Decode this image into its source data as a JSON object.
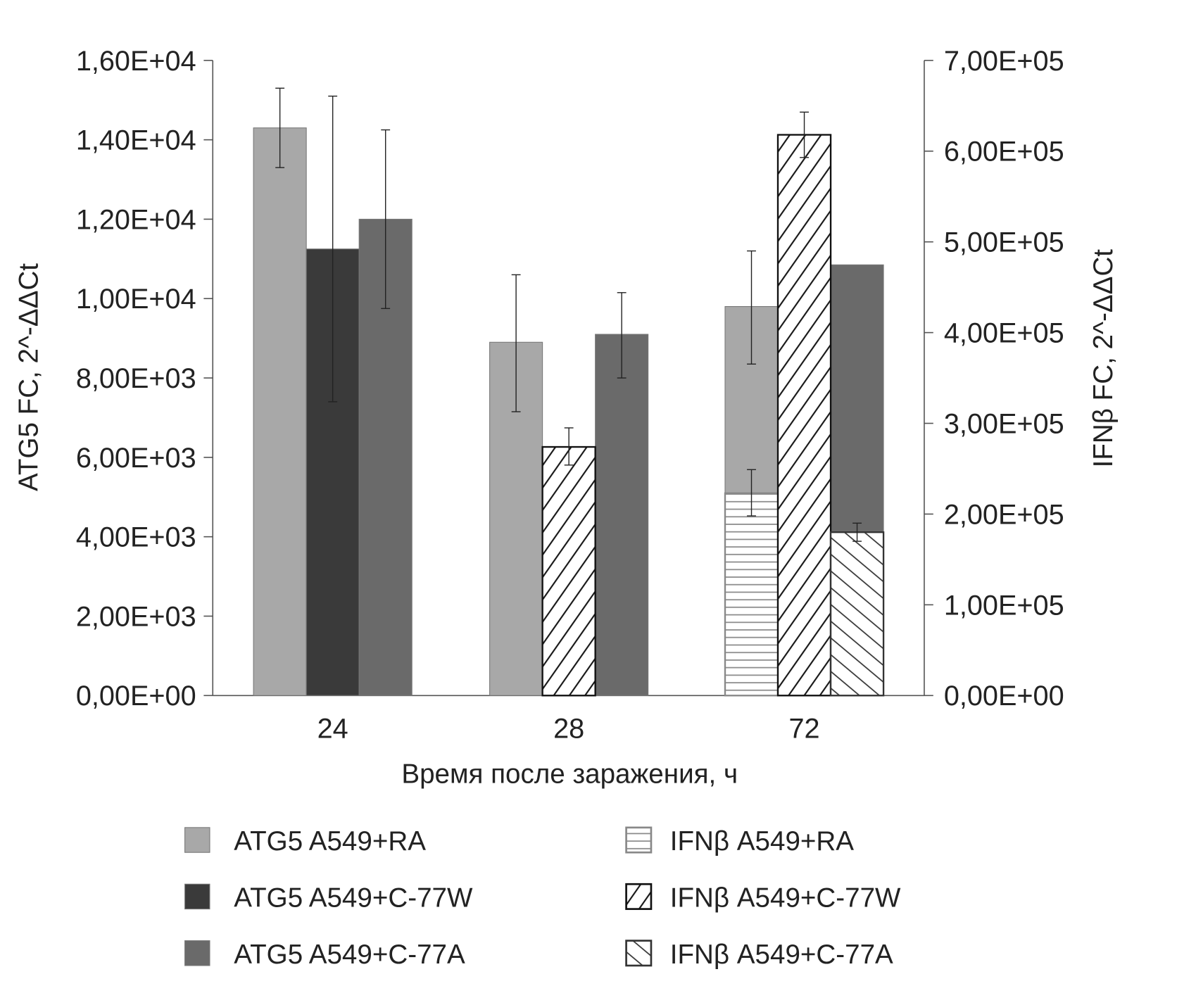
{
  "chart_data": {
    "type": "bar",
    "xlabel": "Время после заражения, ч",
    "ylabel_left": "ATG5  FC, 2^-ΔΔCt",
    "ylabel_right": "IFNβ  FC, 2^-ΔΔCt",
    "categories": [
      "24",
      "28",
      "72"
    ],
    "ylim_left": [
      0,
      16000
    ],
    "yticks_left": [
      "0,00E+00",
      "2,00E+03",
      "4,00E+03",
      "6,00E+03",
      "8,00E+03",
      "1,00E+04",
      "1,20E+04",
      "1,40E+04",
      "1,60E+04"
    ],
    "ylim_right": [
      0,
      700000
    ],
    "yticks_right": [
      "0,00E+00",
      "1,00E+05",
      "2,00E+05",
      "3,00E+05",
      "4,00E+05",
      "5,00E+05",
      "6,00E+05",
      "7,00E+05"
    ],
    "series": [
      {
        "name": "ATG5 A549+RA",
        "axis": "left",
        "slot": 0,
        "fill": "#a8a8a8",
        "pattern": "solid",
        "values": [
          14300,
          8900,
          9800
        ],
        "err_low": [
          13300,
          7150,
          8350
        ],
        "err_high": [
          15300,
          10600,
          11200
        ]
      },
      {
        "name": "ATG5 A549+C-77W",
        "axis": "left",
        "slot": 1,
        "fill": "#3a3a3a",
        "pattern": "solid",
        "values": [
          11250,
          null,
          null
        ],
        "err_low": [
          7400,
          null,
          null
        ],
        "err_high": [
          15100,
          null,
          null
        ]
      },
      {
        "name": "ATG5 A549+C-77A",
        "axis": "left",
        "slot": 2,
        "fill": "#6a6a6a",
        "pattern": "solid",
        "values": [
          12000,
          9100,
          10850
        ],
        "err_low": [
          9750,
          8000,
          null
        ],
        "err_high": [
          14250,
          10150,
          null
        ]
      },
      {
        "name": "IFNβ  A549+RA",
        "axis": "right",
        "slot": 0,
        "fill": "#888888",
        "pattern": "hlines",
        "values": [
          null,
          null,
          223000
        ],
        "err_low": [
          null,
          null,
          198000
        ],
        "err_high": [
          null,
          null,
          249000
        ]
      },
      {
        "name": "IFNβ  A549+C-77W",
        "axis": "right",
        "slot": 1,
        "fill": "#111111",
        "pattern": "diag-up",
        "values": [
          null,
          274000,
          618000
        ],
        "err_low": [
          null,
          254000,
          593000
        ],
        "err_high": [
          null,
          295000,
          643000
        ]
      },
      {
        "name": "IFNβ  A549+C-77A",
        "axis": "right",
        "slot": 2,
        "fill": "#333333",
        "pattern": "diag-down",
        "values": [
          null,
          null,
          180000
        ],
        "err_low": [
          null,
          null,
          170000
        ],
        "err_high": [
          null,
          null,
          190000
        ]
      }
    ],
    "legend": "bottom",
    "grid": false
  }
}
